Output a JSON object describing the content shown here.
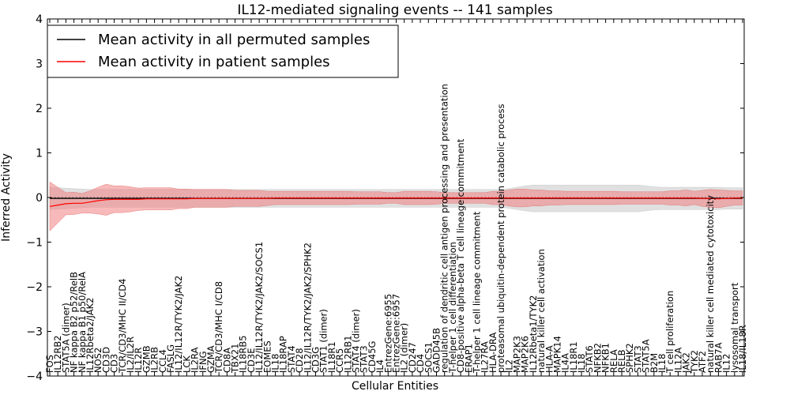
{
  "chart_data": {
    "type": "line",
    "title": "IL12-mediated signaling events -- 141 samples",
    "xlabel": "Cellular Entities",
    "ylabel": "Inferred Activity",
    "ylim": [
      -4,
      4
    ],
    "yticks": [
      "4",
      "3",
      "2",
      "1",
      "0",
      "−1",
      "−2",
      "−3",
      "−4"
    ],
    "legend_position": "top-left",
    "series": [
      {
        "name": "Mean activity in all permuted samples",
        "color": "#000000"
      },
      {
        "name": "Mean activity in patient samples",
        "color": "#ff0000"
      }
    ],
    "categories": [
      "FOS",
      "IL12RB2",
      "STAT5A (dimer)",
      "NF kappa B2 p52/RelB",
      "NF kappa B1 p50/RelA",
      "IL12Rbeta2/JAK2",
      "NOS2",
      "CD3D",
      "CD3",
      "TCR/CD3/MHC II/CD4",
      "IL2/IL2R",
      "IL12R",
      "GZMB",
      "IL2RB",
      "CCL4",
      "FASLG",
      "IL12/IL12R/TYK2/JAK2",
      "LCK",
      "IL2RA",
      "IFNG",
      "GZMA",
      "TCR/CD3/MHC I/CD8",
      "CD8A",
      "TBX21",
      "IL18RB5",
      "CD3E",
      "IL12/IL12R/TYK2/JAK2/SOCS1",
      "EOMES",
      "IL18",
      "IL18RAP",
      "STAT4",
      "CD28",
      "IL12/IL12R/TYK2/JAK2/SPHK2",
      "CD3G",
      "STAT1 (dimer)",
      "IL18R1",
      "CCR5",
      "IL12RB1",
      "STAT4 (dimer)",
      "STAT3",
      "CD45G",
      "IL4",
      "EntrezGene:6955",
      "EntrezGene:6957",
      "IL2 (dimer)",
      "CD247",
      "CD4",
      "SOCS1",
      "GADD45B",
      "regulation of dendritic cell antigen processing and presentation",
      "T-helper 1 cell differentiation",
      "CD8-positive alpha-beta T cell lineage commitment",
      "ERAP1",
      "T-helper 1 cell lineage commitment",
      "IL27RA",
      "HLA-DRA",
      "proteasomal ubiquitin-dependent protein catabolic process",
      "IL2",
      "MAP2K3",
      "MAP2K6",
      "IL12Rbeta1/TYK2",
      "natural killer cell activation",
      "HLA-A",
      "MAPK14",
      "IL4A",
      "IL18R1",
      "IL18",
      "STAT6",
      "NFKB2",
      "NFKB1",
      "RELA",
      "RELB",
      "SPHK2",
      "STAT3",
      "STAT5A",
      "B2M",
      "IL18",
      "T cell proliferation",
      "IL12A",
      "JAK2",
      "TYK2",
      "ATF2",
      "natural killer cell mediated cytotoxicity",
      "RAB7A",
      "IL12",
      "lysosomal transport",
      "IL18/IL18R"
    ],
    "patient_mean": [
      -0.2,
      -0.17,
      -0.14,
      -0.13,
      -0.13,
      -0.1,
      -0.07,
      -0.05,
      -0.04,
      -0.04,
      -0.04,
      -0.04,
      -0.03,
      -0.03,
      -0.03,
      -0.03,
      -0.03,
      -0.03,
      -0.02,
      -0.02,
      -0.02,
      -0.02,
      -0.02,
      -0.02,
      -0.02,
      -0.02,
      -0.02,
      -0.02,
      -0.01,
      -0.01,
      -0.01,
      -0.01,
      -0.01,
      -0.01,
      -0.01,
      -0.01,
      -0.01,
      -0.01,
      -0.01,
      -0.01,
      -0.01,
      -0.01,
      -0.01,
      -0.01,
      -0.01,
      -0.01,
      -0.01,
      -0.01,
      -0.01,
      -0.01,
      -0.01,
      -0.01,
      -0.01,
      -0.01,
      -0.01,
      -0.01,
      -0.01,
      -0.01,
      -0.01,
      -0.01,
      -0.01,
      -0.01,
      -0.01,
      -0.01,
      -0.01,
      -0.01,
      -0.01,
      -0.01,
      -0.01,
      -0.01,
      -0.01,
      -0.01,
      -0.01,
      -0.01,
      -0.01,
      -0.01,
      -0.01,
      -0.01,
      -0.01,
      -0.01,
      -0.01,
      -0.02,
      -0.02,
      -0.03,
      -0.02,
      -0.01,
      -0.01
    ],
    "permuted_mean": [
      -0.02,
      -0.02,
      -0.02,
      -0.02,
      -0.02,
      -0.02,
      -0.02,
      -0.02,
      -0.02,
      -0.02,
      -0.02,
      -0.02,
      -0.02,
      -0.02,
      -0.02,
      -0.02,
      -0.02,
      -0.02,
      -0.02,
      -0.02,
      -0.02,
      -0.02,
      -0.02,
      -0.02,
      -0.02,
      -0.02,
      -0.02,
      -0.02,
      -0.02,
      -0.02,
      -0.02,
      -0.02,
      -0.02,
      -0.02,
      -0.02,
      -0.02,
      -0.02,
      -0.02,
      -0.02,
      -0.02,
      -0.02,
      -0.02,
      -0.02,
      -0.02,
      -0.02,
      -0.02,
      -0.02,
      -0.02,
      -0.02,
      -0.02,
      -0.02,
      -0.02,
      -0.02,
      -0.02,
      -0.02,
      -0.02,
      -0.02,
      -0.02,
      -0.02,
      -0.02,
      -0.02,
      -0.02,
      -0.02,
      -0.02,
      -0.02,
      -0.02,
      -0.02,
      -0.02,
      -0.02,
      -0.02,
      -0.02,
      -0.02,
      -0.02,
      -0.02,
      -0.02,
      -0.02,
      -0.02,
      -0.02,
      -0.02,
      -0.02,
      -0.02,
      -0.02,
      -0.02,
      -0.02,
      -0.02,
      -0.02,
      -0.02
    ],
    "patient_band": [
      0.55,
      0.4,
      0.25,
      0.25,
      0.22,
      0.25,
      0.3,
      0.35,
      0.3,
      0.3,
      0.28,
      0.25,
      0.25,
      0.25,
      0.25,
      0.25,
      0.22,
      0.22,
      0.2,
      0.2,
      0.2,
      0.2,
      0.2,
      0.18,
      0.18,
      0.18,
      0.18,
      0.16,
      0.15,
      0.15,
      0.15,
      0.15,
      0.15,
      0.15,
      0.15,
      0.15,
      0.15,
      0.15,
      0.14,
      0.14,
      0.14,
      0.14,
      0.12,
      0.12,
      0.15,
      0.15,
      0.15,
      0.15,
      0.14,
      0.12,
      0.12,
      0.12,
      0.12,
      0.12,
      0.12,
      0.15,
      0.15,
      0.18,
      0.2,
      0.2,
      0.18,
      0.18,
      0.16,
      0.16,
      0.15,
      0.15,
      0.15,
      0.15,
      0.15,
      0.15,
      0.15,
      0.14,
      0.14,
      0.14,
      0.14,
      0.14,
      0.14,
      0.16,
      0.16,
      0.18,
      0.15,
      0.18,
      0.2,
      0.2,
      0.18,
      0.16,
      0.16
    ],
    "permuted_band": [
      0.25,
      0.24,
      0.23,
      0.22,
      0.21,
      0.2,
      0.2,
      0.2,
      0.2,
      0.2,
      0.2,
      0.2,
      0.2,
      0.2,
      0.2,
      0.2,
      0.2,
      0.2,
      0.2,
      0.2,
      0.2,
      0.2,
      0.2,
      0.2,
      0.2,
      0.2,
      0.2,
      0.2,
      0.2,
      0.2,
      0.2,
      0.2,
      0.2,
      0.2,
      0.2,
      0.2,
      0.2,
      0.2,
      0.2,
      0.2,
      0.2,
      0.2,
      0.2,
      0.2,
      0.2,
      0.2,
      0.2,
      0.2,
      0.2,
      0.2,
      0.2,
      0.2,
      0.2,
      0.2,
      0.2,
      0.2,
      0.2,
      0.22,
      0.25,
      0.28,
      0.3,
      0.3,
      0.3,
      0.3,
      0.3,
      0.3,
      0.3,
      0.3,
      0.3,
      0.3,
      0.3,
      0.3,
      0.3,
      0.3,
      0.28,
      0.26,
      0.25,
      0.25,
      0.25,
      0.25,
      0.25,
      0.25,
      0.25,
      0.25,
      0.24,
      0.24,
      0.24
    ]
  }
}
